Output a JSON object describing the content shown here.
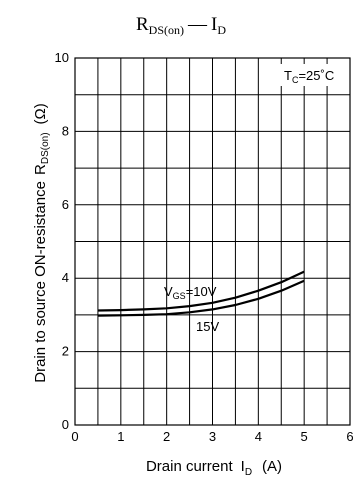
{
  "chart_data": {
    "type": "line",
    "title_main": "R",
    "title_sub": "DS(on)",
    "title_dash": "—",
    "title_tail_main": "I",
    "title_tail_sub": "D",
    "xlabel_main": "Drain current",
    "xlabel_sym": "I",
    "xlabel_sub": "D",
    "xlabel_unit": "(A)",
    "ylabel_main": "Drain to source ON-resistance",
    "ylabel_sym": "R",
    "ylabel_sub": "DS(on)",
    "ylabel_unit": "(Ω)",
    "condition_main": "T",
    "condition_sub": "C",
    "condition_tail": "=25˚C",
    "xlim": [
      0,
      6
    ],
    "ylim": [
      0,
      10
    ],
    "x_ticks": [
      "0",
      "1",
      "2",
      "3",
      "4",
      "5",
      "6"
    ],
    "y_ticks": [
      "0",
      "2",
      "4",
      "6",
      "8",
      "10"
    ],
    "grid": true,
    "series": [
      {
        "label_main": "V",
        "label_sub": "GS",
        "label_tail": "=10V",
        "x": [
          0.5,
          1,
          1.5,
          2,
          2.5,
          3,
          3.5,
          4,
          4.5,
          5
        ],
        "y": [
          3.12,
          3.13,
          3.15,
          3.18,
          3.24,
          3.33,
          3.47,
          3.66,
          3.89,
          4.18
        ]
      },
      {
        "label_main": "15V",
        "x": [
          0.5,
          1,
          1.5,
          2,
          2.5,
          3,
          3.5,
          4,
          4.5,
          5
        ],
        "y": [
          2.98,
          2.99,
          3.0,
          3.02,
          3.07,
          3.15,
          3.27,
          3.44,
          3.66,
          3.93
        ]
      }
    ]
  }
}
